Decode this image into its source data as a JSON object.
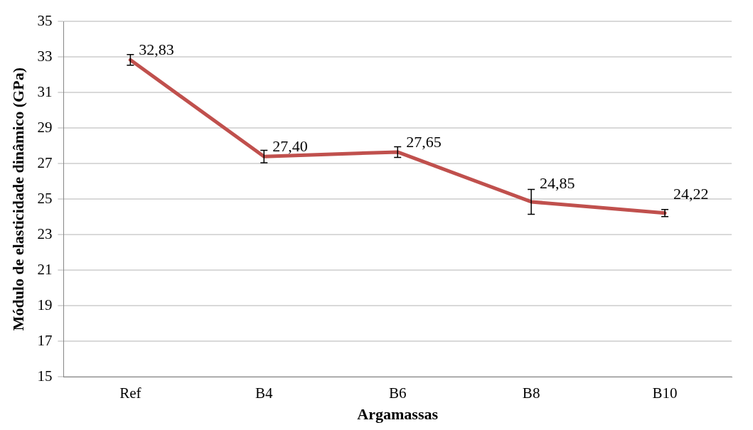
{
  "chart_data": {
    "type": "line",
    "xlabel": "Argamassas",
    "ylabel": "Módulo de elasticidade dinâmico (GPa)",
    "categories": [
      "Ref",
      "B4",
      "B6",
      "B8",
      "B10"
    ],
    "series": [
      {
        "color": "#c0504d",
        "values": [
          32.83,
          27.4,
          27.65,
          24.85,
          24.22
        ],
        "errors": [
          0.3,
          0.35,
          0.3,
          0.7,
          0.2
        ],
        "value_labels": [
          "32,83",
          "27,40",
          "27,65",
          "24,85",
          "24,22"
        ]
      }
    ],
    "ylim": [
      15,
      35
    ],
    "yticks": [
      15,
      17,
      19,
      21,
      23,
      25,
      27,
      29,
      31,
      33,
      35
    ],
    "grid": "y",
    "legend": false,
    "line_style": "solid"
  }
}
